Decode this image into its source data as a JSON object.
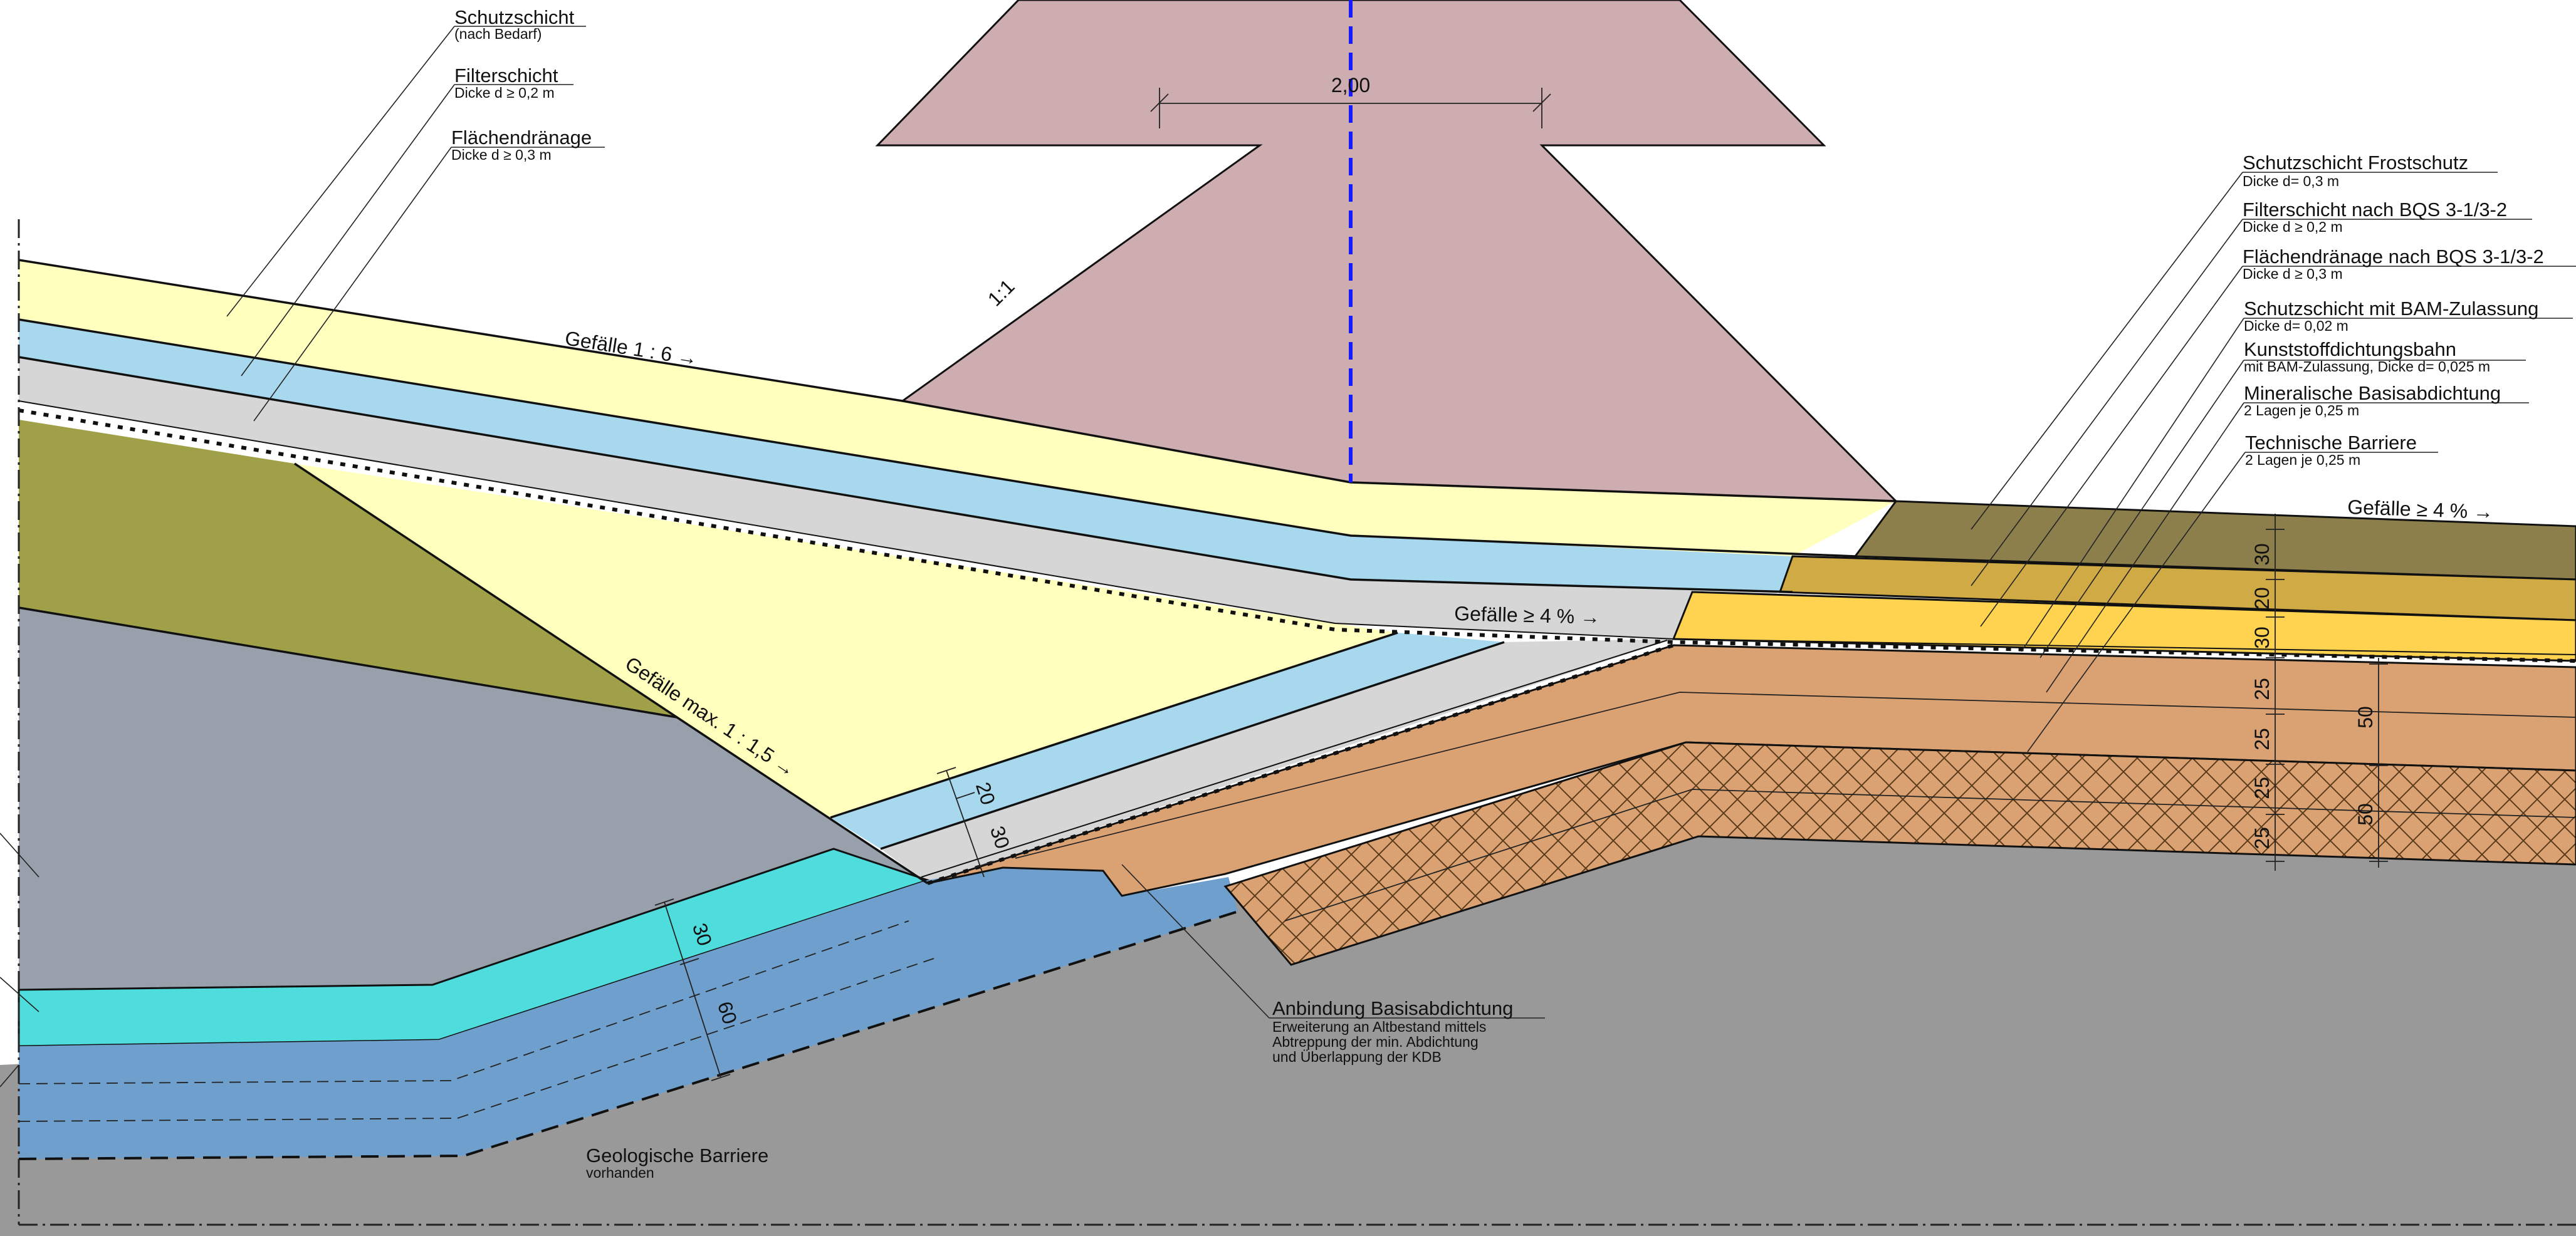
{
  "diagram": {
    "top_dimension": "2,00",
    "slope_ratio": "1:1",
    "slopes": {
      "slope_1_6": "Gefälle 1 : 6  →",
      "slope_4_mid": "Gefälle ≥ 4 %  →",
      "slope_4_right": "Gefälle ≥ 4 %  →",
      "slope_max": "Gefälle max. 1 : 1,5  →"
    },
    "left_labels": [
      {
        "title": "Schutzschicht",
        "sub": "(nach Bedarf)"
      },
      {
        "title": "Filterschicht",
        "sub": "Dicke d ≥ 0,2 m"
      },
      {
        "title": "Flächendränage",
        "sub": "Dicke d ≥ 0,3 m"
      }
    ],
    "right_labels": [
      {
        "title": "Schutzschicht Frostschutz",
        "sub": "Dicke d= 0,3 m"
      },
      {
        "title": "Filterschicht nach BQS 3-1/3-2",
        "sub": "Dicke d ≥ 0,2 m"
      },
      {
        "title": "Flächendränage nach BQS 3-1/3-2",
        "sub": "Dicke d ≥ 0,3 m"
      },
      {
        "title": "Schutzschicht mit BAM-Zulassung",
        "sub": "Dicke d= 0,02 m"
      },
      {
        "title": "Kunststoffdichtungsbahn",
        "sub": "mit BAM-Zulassung, Dicke d= 0,025 m"
      },
      {
        "title": "Mineralische Basisabdichtung",
        "sub": "2 Lagen je 0,25 m"
      },
      {
        "title": "Technische Barriere",
        "sub": "2 Lagen je 0,25 m"
      }
    ],
    "right_dimensions": [
      "30",
      "20",
      "30",
      "25",
      "25",
      "25",
      "25"
    ],
    "right_dimensions_total": [
      "50",
      "50"
    ],
    "slope_dimensions": [
      "20",
      "30"
    ],
    "lower_dimensions": [
      "30",
      "60"
    ],
    "anbindung": {
      "title": "Anbindung Basisabdichtung",
      "lines": [
        "Erweiterung an Altbestand mittels",
        "Abtreppung der min. Abdichtung",
        "und Überlappung der KDB"
      ]
    },
    "geo": {
      "title": "Geologische Barriere",
      "sub": "vorhanden"
    },
    "colors": {
      "dam": "#cdadb0",
      "yellow": "#ffffbe",
      "blue_light": "#a8d8ed",
      "grey_light": "#d6d6d6",
      "olive": "#a0a049",
      "slate": "#98a0ab",
      "cyan": "#4fdcdc",
      "blue_mid": "#6f9fcc",
      "ground": "#999999",
      "brown_top": "#8c7f4b",
      "gold": "#cfaa45",
      "orange_yellow": "#ffd24f",
      "tan": "#daa272",
      "centerline": "#1a1aff"
    }
  }
}
